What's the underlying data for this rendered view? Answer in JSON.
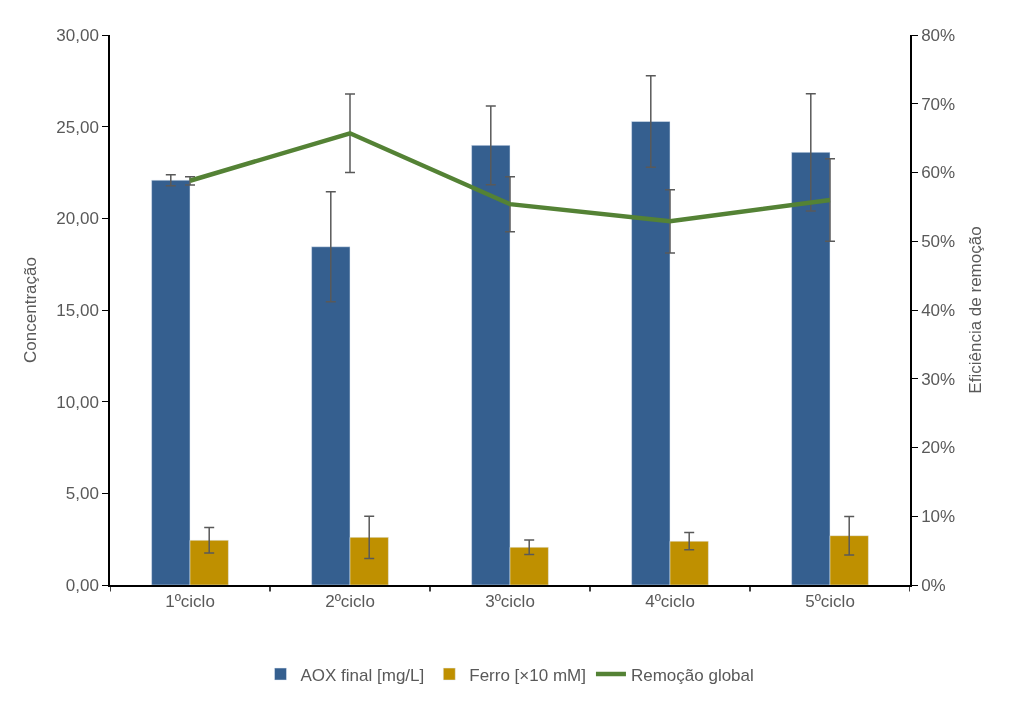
{
  "chart_data": {
    "type": "bar",
    "ylabel": "Concentração",
    "y2label": "Eficiência de remoção",
    "categories": [
      "1ºciclo",
      "2ºciclo",
      "3ºciclo",
      "4ºciclo",
      "5ºciclo"
    ],
    "series": [
      {
        "name": "AOX final [mg/L]",
        "color": "#355f8f",
        "values": [
          22.08,
          18.45,
          23.98,
          25.28,
          23.6
        ],
        "errors": [
          0.3,
          3.0,
          2.15,
          2.5,
          3.2
        ]
      },
      {
        "name": "Ferro [×10 mM]",
        "color": "#bf9000",
        "values": [
          2.44,
          2.6,
          2.06,
          2.39,
          2.69
        ],
        "errors": [
          0.7,
          1.15,
          0.4,
          0.47,
          1.05
        ]
      },
      {
        "name": "Remoção global",
        "type": "line",
        "axis": "y2",
        "color": "#548235",
        "values": [
          58.8,
          65.7,
          55.4,
          52.9,
          56.0
        ],
        "errors": [
          0.6,
          5.7,
          4.0,
          4.6,
          6.0
        ]
      }
    ],
    "ylim": [
      0,
      30
    ],
    "yticks": [
      {
        "value": 0,
        "label": "0,00"
      },
      {
        "value": 5,
        "label": "5,00"
      },
      {
        "value": 10,
        "label": "10,00"
      },
      {
        "value": 15,
        "label": "15,00"
      },
      {
        "value": 20,
        "label": "20,00"
      },
      {
        "value": 25,
        "label": "25,00"
      },
      {
        "value": 30,
        "label": "30,00"
      }
    ],
    "y2lim": [
      0,
      80
    ],
    "y2ticks": [
      {
        "value": 0,
        "label": "0%"
      },
      {
        "value": 10,
        "label": "10%"
      },
      {
        "value": 20,
        "label": "20%"
      },
      {
        "value": 30,
        "label": "30%"
      },
      {
        "value": 40,
        "label": "40%"
      },
      {
        "value": 50,
        "label": "50%"
      },
      {
        "value": 60,
        "label": "60%"
      },
      {
        "value": 70,
        "label": "70%"
      },
      {
        "value": 80,
        "label": "80%"
      }
    ],
    "legend": "bottom",
    "marker": "none",
    "line_style": "solid"
  }
}
